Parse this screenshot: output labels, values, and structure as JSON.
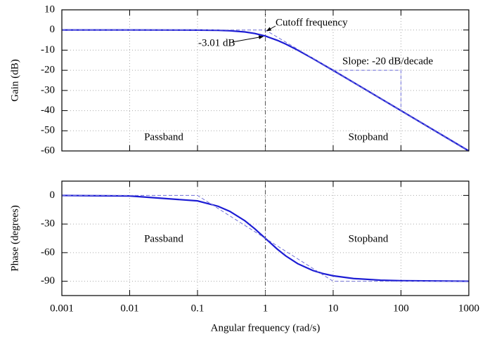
{
  "chart_data": [
    {
      "type": "line",
      "xscale": "log",
      "ylabel": "Gain (dB)",
      "xlim": [
        0.001,
        1000
      ],
      "xticks": [
        0.001,
        0.01,
        0.1,
        1,
        10,
        100,
        1000
      ],
      "xtick_labels": false,
      "ylim": [
        -60,
        10
      ],
      "yticks": [
        10,
        0,
        -10,
        -20,
        -30,
        -40,
        -50,
        -60
      ],
      "grid": true,
      "vlines": [
        1
      ],
      "x": [
        0.001,
        0.01,
        0.1,
        0.2,
        0.3,
        0.5,
        0.7,
        1,
        1.5,
        2,
        3,
        5,
        7,
        10,
        20,
        50,
        100,
        1000
      ],
      "series": [
        {
          "color": "#1c1cd4",
          "style": "solid",
          "values": [
            0,
            0,
            -0.043,
            -0.17,
            -0.374,
            -0.97,
            -1.74,
            -3.01,
            -5.12,
            -6.99,
            -10,
            -14.15,
            -17.0,
            -20.04,
            -26.02,
            -33.98,
            -40,
            -60
          ]
        },
        {
          "color": "#7070d8",
          "style": "dashed",
          "x": [
            0.001,
            1,
            1000
          ],
          "values": [
            0,
            0,
            -60
          ]
        },
        {
          "color": "#7070d8",
          "style": "dashed",
          "x": [
            10,
            100,
            100
          ],
          "values": [
            -20,
            -20,
            -40
          ]
        }
      ],
      "annotations": [
        "Cutoff frequency",
        "-3.01 dB",
        "Slope: -20 dB/decade",
        "Passband",
        "Stopband"
      ]
    },
    {
      "type": "line",
      "xscale": "log",
      "ylabel": "Phase (degrees)",
      "xlabel": "Angular frequency (rad/s)",
      "xlim": [
        0.001,
        1000
      ],
      "xticks": [
        0.001,
        0.01,
        0.1,
        1,
        10,
        100,
        1000
      ],
      "xtick_labels": true,
      "ylim": [
        -105,
        15
      ],
      "yticks": [
        0,
        -30,
        -60,
        -90
      ],
      "grid": true,
      "vlines": [
        1
      ],
      "x": [
        0.001,
        0.01,
        0.1,
        0.2,
        0.3,
        0.5,
        0.7,
        1,
        1.5,
        2,
        3,
        5,
        7,
        10,
        20,
        50,
        100,
        1000
      ],
      "series": [
        {
          "color": "#1c1cd4",
          "style": "solid",
          "values": [
            -0.06,
            -0.57,
            -5.71,
            -11.31,
            -16.7,
            -26.57,
            -34.99,
            -45,
            -56.31,
            -63.43,
            -71.57,
            -78.69,
            -81.87,
            -84.29,
            -87.14,
            -88.85,
            -89.43,
            -89.94
          ]
        },
        {
          "color": "#7070d8",
          "style": "dashed",
          "x": [
            0.001,
            0.1,
            10,
            1000
          ],
          "values": [
            0,
            0,
            -90,
            -90
          ]
        }
      ],
      "annotations": [
        "Passband",
        "Stopband"
      ]
    }
  ]
}
